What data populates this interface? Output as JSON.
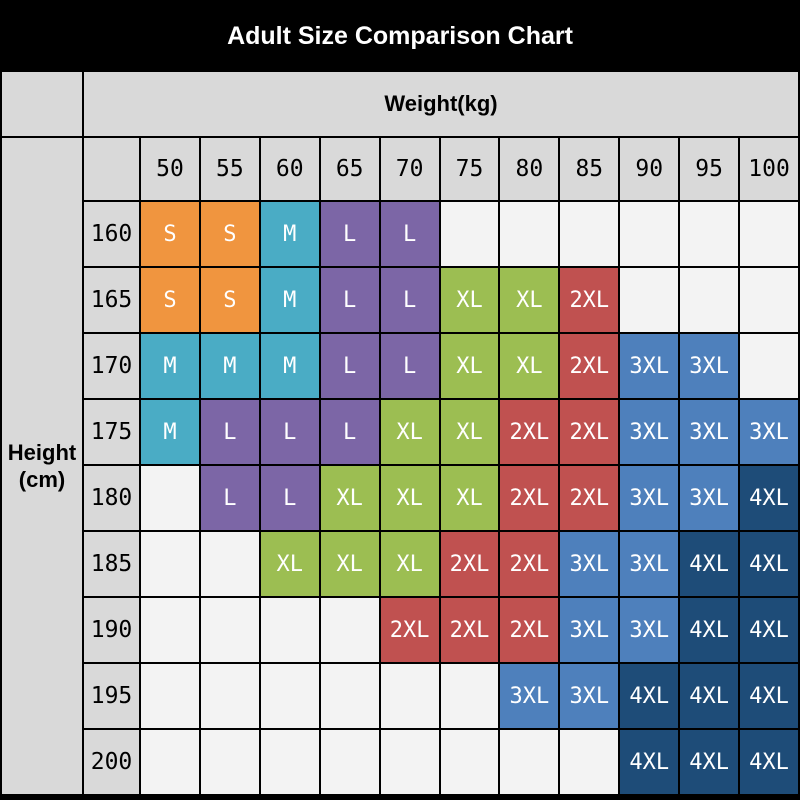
{
  "title": "Adult Size Comparison Chart",
  "axes": {
    "weight_label": "Weight(kg)",
    "height_label_line1": "Height",
    "height_label_line2": "(cm)"
  },
  "chart_data": {
    "type": "table",
    "title": "Adult Size Comparison Chart",
    "columns_weight_kg": [
      "50",
      "55",
      "60",
      "65",
      "70",
      "75",
      "80",
      "85",
      "90",
      "95",
      "100"
    ],
    "rows_height_cm": [
      "160",
      "165",
      "170",
      "175",
      "180",
      "185",
      "190",
      "195",
      "200"
    ],
    "cells": [
      [
        "S",
        "S",
        "M",
        "L",
        "L",
        "",
        "",
        "",
        "",
        "",
        ""
      ],
      [
        "S",
        "S",
        "M",
        "L",
        "L",
        "XL",
        "XL",
        "2XL",
        "",
        "",
        ""
      ],
      [
        "M",
        "M",
        "M",
        "L",
        "L",
        "XL",
        "XL",
        "2XL",
        "3XL",
        "3XL",
        ""
      ],
      [
        "M",
        "L",
        "L",
        "L",
        "XL",
        "XL",
        "2XL",
        "2XL",
        "3XL",
        "3XL",
        "3XL"
      ],
      [
        "",
        "L",
        "L",
        "XL",
        "XL",
        "XL",
        "2XL",
        "2XL",
        "3XL",
        "3XL",
        "4XL"
      ],
      [
        "",
        "",
        "XL",
        "XL",
        "XL",
        "2XL",
        "2XL",
        "3XL",
        "3XL",
        "4XL",
        "4XL"
      ],
      [
        "",
        "",
        "",
        "",
        "2XL",
        "2XL",
        "2XL",
        "3XL",
        "3XL",
        "4XL",
        "4XL"
      ],
      [
        "",
        "",
        "",
        "",
        "",
        "",
        "3XL",
        "3XL",
        "4XL",
        "4XL",
        "4XL"
      ],
      [
        "",
        "",
        "",
        "",
        "",
        "",
        "",
        "",
        "4XL",
        "4XL",
        "4XL"
      ]
    ],
    "size_colors": {
      "S": "#F0953F",
      "M": "#4AACC5",
      "L": "#7C66A6",
      "XL": "#9CBE52",
      "2XL": "#C05150",
      "3XL": "#4E80BC",
      "4XL": "#1E4C78"
    }
  },
  "colors": {
    "page_bg": "#000000",
    "title_text": "#FFFFFF",
    "header_bg": "#D9D9D9",
    "header_text": "#000000",
    "empty_cell_bg": "#F3F3F3",
    "cell_text": "#FFFFFF",
    "grid_line": "#000000"
  }
}
